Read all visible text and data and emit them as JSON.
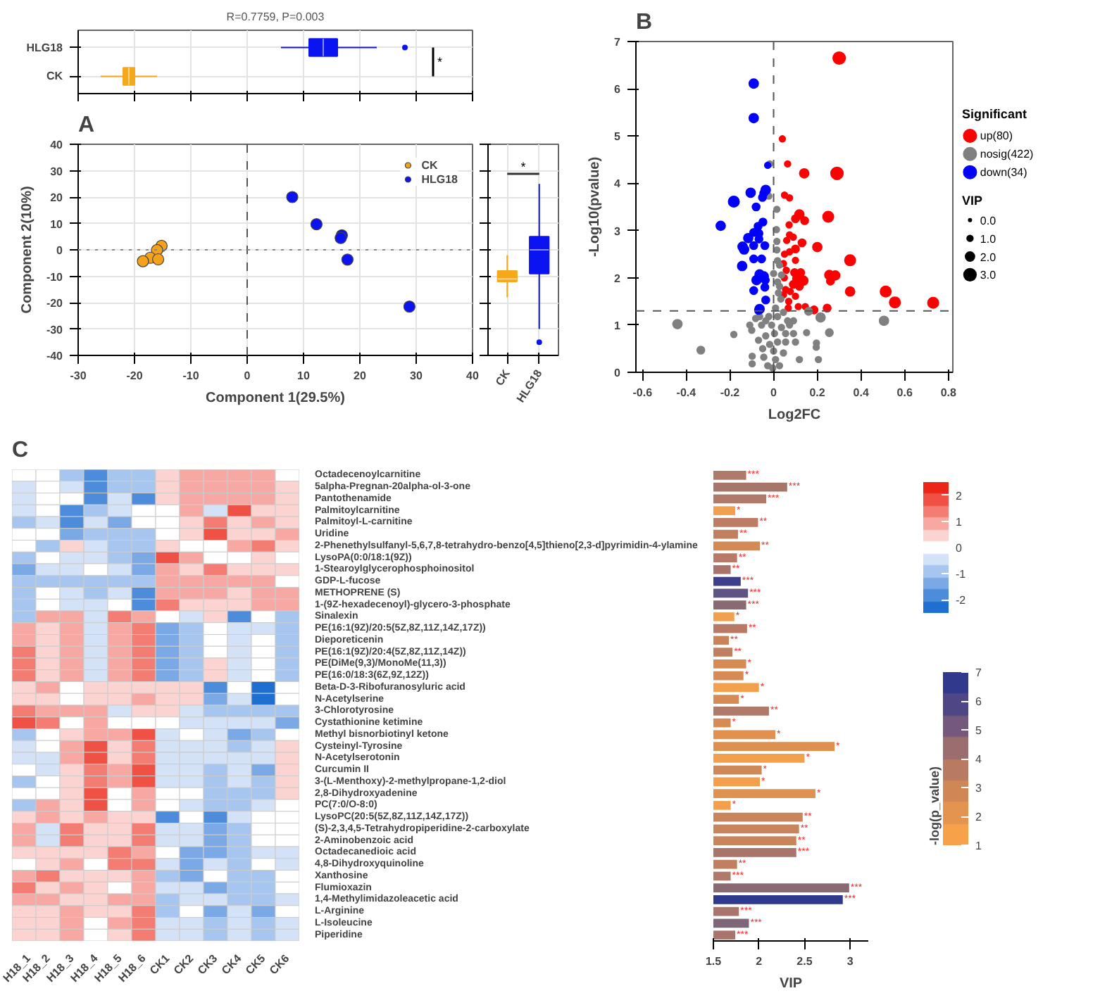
{
  "chart_data": [
    {
      "type": "box",
      "orientation": "horizontal",
      "title": "R=0.7759, P=0.003",
      "categories": [
        "HLG18",
        "CK"
      ],
      "colors": [
        "#0a14f0",
        "#f5a91a"
      ],
      "boxes": [
        {
          "low": 6,
          "q1": 11,
          "median": 13.5,
          "q3": 16,
          "high": 23,
          "outliers": [
            28
          ]
        },
        {
          "low": -26,
          "q1": -22,
          "median": -21,
          "q3": -20,
          "high": -16
        }
      ],
      "xlim": [
        -30,
        40
      ],
      "xticks": [
        -30,
        -20,
        -10,
        0,
        10,
        20,
        30,
        40
      ],
      "tick_labels": "y",
      "grid": true,
      "annotations": [
        "*"
      ]
    },
    {
      "type": "scatter",
      "annotations": [
        "A"
      ],
      "xlabel": "Component 1(29.5%)",
      "ylabel": "Component 2(10%)",
      "marker": "circle",
      "legend": "top right",
      "grid": true,
      "series": [
        {
          "name": "CK",
          "color": "#f5a21a",
          "x": [
            -15.2,
            -16,
            -17.2,
            -18.5,
            -15.8
          ],
          "values": [
            1.5,
            -0.1,
            -3,
            -4.3,
            -3.6
          ]
        },
        {
          "name": "HLG18",
          "color": "#0a14f0",
          "x": [
            8,
            12.3,
            16.8,
            16.6,
            17.8,
            28.8
          ],
          "values": [
            20,
            9.7,
            5.5,
            4.5,
            -3.7,
            -21.5
          ]
        }
      ],
      "xlim": [
        -30,
        40
      ],
      "xticks": [
        -30,
        -20,
        -10,
        0,
        10,
        20,
        30,
        40
      ],
      "ylim": [
        -40,
        40
      ],
      "yticks": [
        -40,
        -30,
        -20,
        -10,
        0,
        10,
        20,
        30,
        40
      ],
      "ref_lines": [
        {
          "axis": "x",
          "value": 0,
          "line_style": "dashed",
          "color": "#555555"
        },
        {
          "axis": "y",
          "value": 0,
          "line_style": "dotted",
          "color": "#888888"
        }
      ]
    },
    {
      "type": "box",
      "categories": [
        "CK",
        "HLG18"
      ],
      "colors": [
        "#f5a91a",
        "#0a14f0"
      ],
      "boxes": [
        {
          "low": -18,
          "q1": -12,
          "median": -11,
          "q3": -8,
          "high": -2
        },
        {
          "low": -30,
          "q1": -9,
          "median": 0,
          "q3": 5,
          "high": 25,
          "outliers": [
            -35
          ]
        }
      ],
      "ylim": [
        -40,
        40
      ],
      "yticks": [
        -40,
        -30,
        -20,
        -10,
        0,
        10,
        20,
        30,
        40
      ],
      "tick_labels": "x",
      "grid": true,
      "annotations": [
        "*"
      ]
    },
    {
      "type": "bubble",
      "xlabel": "Log2FC",
      "ylabel": "-Log10(pvalue)",
      "legend": "right",
      "legend_title": "Significant",
      "size_legend": [
        {
          "value": 0,
          "label": "0.0"
        },
        {
          "value": 1,
          "label": "1.0"
        },
        {
          "value": 2,
          "label": "2.0"
        },
        {
          "value": 3,
          "label": "3.0"
        }
      ],
      "xlim": [
        -0.63,
        0.82
      ],
      "xticks": [
        -0.6,
        -0.4,
        -0.2,
        0,
        0.2,
        0.4,
        0.6,
        0.8
      ],
      "ylim": [
        0,
        7
      ],
      "yticks": [
        0,
        1,
        2,
        3,
        4,
        5,
        6,
        7
      ],
      "annotations": [
        "B",
        "VIP"
      ],
      "ref_lines": [
        {
          "axis": "x",
          "value": 0,
          "line_style": "dashed",
          "color": "#555555"
        },
        {
          "axis": "y",
          "value": 1.3,
          "line_style": "dashed",
          "color": "#555555"
        }
      ],
      "series": [
        {
          "name": "up(80)",
          "color": "#ff0000",
          "x": [
            0.3,
            0.04,
            0.064,
            0.14,
            0.29,
            0.05,
            0.073,
            0.118,
            0.1,
            0.142,
            0.25,
            0.071,
            0.073,
            0.09,
            0.06,
            0.13,
            0.2,
            0.1,
            0.073,
            0.05,
            0.1,
            0.35,
            0.045,
            0.058,
            0.096,
            0.124,
            0.255,
            0.282,
            0.26,
            0.049,
            0.105,
            0.136,
            0.09,
            0.118,
            0.055,
            0.076,
            0.35,
            0.513,
            0.045,
            0.1,
            0.069,
            0.555,
            0.73,
            0.067,
            0.113,
            0.145,
            0.245,
            0.185
          ],
          "values": [
            6.65,
            4.94,
            4.41,
            4.21,
            4.21,
            3.75,
            3.69,
            3.34,
            3.25,
            3.21,
            3.29,
            3.12,
            2.91,
            2.86,
            2.79,
            2.74,
            2.65,
            2.61,
            2.55,
            2.5,
            2.37,
            2.37,
            2.3,
            2.16,
            2.11,
            2.11,
            2.06,
            2.05,
            1.93,
            2.0,
            1.98,
            1.94,
            1.86,
            1.82,
            1.75,
            1.71,
            1.71,
            1.71,
            1.64,
            1.61,
            1.5,
            1.48,
            1.47,
            1.36,
            1.39,
            1.39,
            1.36,
            1.32
          ],
          "sizes": [
            3,
            1,
            1,
            2,
            3,
            1,
            1,
            2,
            1.5,
            1.5,
            2.5,
            1,
            1,
            1,
            1,
            1.5,
            2,
            1.5,
            1,
            1,
            1,
            2.5,
            1,
            1,
            1.5,
            1.5,
            2,
            2,
            1.5,
            1,
            1.5,
            2,
            1.5,
            1.5,
            1,
            1,
            2,
            2.5,
            1,
            1,
            1,
            2.5,
            2.5,
            1,
            1,
            1,
            1.5,
            1.5
          ]
        },
        {
          "name": "nosig(422)",
          "color": "#808080",
          "x": [
            -0.44,
            -0.333,
            -0.182,
            -0.1,
            -0.098,
            -0.098,
            -0.069,
            -0.05,
            -0.036,
            -0.022,
            -0.018,
            0.015,
            0.013,
            0.015,
            0.015,
            0.018,
            0.027,
            0.036,
            0.018,
            0.022,
            0.033,
            0.009,
            -0.022,
            -0.009,
            0.004,
            0.018,
            0,
            0.009,
            -0.004,
            0.027,
            -0.027,
            0.045,
            -0.045,
            0.055,
            0.073,
            0.091,
            0.1,
            0.118,
            0.151,
            0.16,
            0.195,
            0.196,
            0.205,
            0.215,
            0.255,
            0.505,
            -0.055,
            -0.064,
            -0.036,
            -0.018,
            0.036,
            0.064,
            0.018,
            0.045,
            0.091,
            -0.082,
            -0.109,
            0.055,
            0.027,
            0
          ],
          "values": [
            1.02,
            0.47,
            0.8,
            0.89,
            0.34,
            0.18,
            0.68,
            0.5,
            1.09,
            3.73,
            4.41,
            3.45,
            3.02,
            2.77,
            2.59,
            2.36,
            2.27,
            2.06,
            1.91,
            1.68,
            1.55,
            1.36,
            1.18,
            1.0,
            0.82,
            0.64,
            0.45,
            0.27,
            0.09,
            0.14,
            0.14,
            0.41,
            0.32,
            0.82,
            1.0,
            1.09,
            0.64,
            0.27,
            0.84,
            1.29,
            0.53,
            0.62,
            0.27,
            1.16,
            0.84,
            1.09,
            1.0,
            1.18,
            0.77,
            0.59,
            0.95,
            1.09,
            1.18,
            1.27,
            0.82,
            1.14,
            1.0,
            0.64,
            1.82,
            2.09
          ],
          "sizes": [
            2,
            1.5,
            1,
            1,
            1,
            1,
            1,
            1,
            1,
            1,
            1,
            1,
            1,
            1,
            1,
            1,
            1,
            1,
            1,
            1,
            1,
            1,
            1,
            1,
            1,
            1,
            1,
            1,
            1,
            1,
            1,
            1,
            1,
            1,
            1,
            1,
            1,
            1,
            1,
            1.5,
            1,
            1,
            1,
            2,
            1.5,
            2,
            1,
            1,
            1,
            1,
            1,
            1,
            1,
            1,
            1,
            1,
            1,
            1,
            1,
            1
          ]
        },
        {
          "name": "down(34)",
          "color": "#0000ff",
          "x": [
            -0.091,
            -0.091,
            -0.027,
            -0.182,
            -0.105,
            -0.036,
            -0.045,
            -0.051,
            -0.08,
            -0.242,
            -0.049,
            -0.071,
            -0.091,
            -0.067,
            -0.116,
            -0.067,
            -0.142,
            -0.135,
            -0.091,
            -0.04,
            -0.091,
            -0.055,
            -0.144,
            -0.064,
            -0.045,
            -0.078,
            -0.038,
            -0.091,
            -0.04,
            -0.036,
            -0.064,
            -0.069
          ],
          "values": [
            6.11,
            5.38,
            4.38,
            3.61,
            3.8,
            3.86,
            3.79,
            3.7,
            3.5,
            3.1,
            3.18,
            3.09,
            2.96,
            2.94,
            2.84,
            2.82,
            2.66,
            2.6,
            2.68,
            2.68,
            2.4,
            2.4,
            2.25,
            2.07,
            2.03,
            1.95,
            1.95,
            1.73,
            1.8,
            1.53,
            1.34,
            1.31
          ],
          "sizes": [
            2,
            2,
            1,
            2.5,
            2,
            2,
            1.5,
            1.5,
            1.5,
            2,
            1.5,
            1.5,
            1.5,
            1.5,
            2,
            1.5,
            2,
            2,
            1.5,
            1.5,
            1.5,
            1.5,
            2,
            2,
            2,
            2,
            1.5,
            1.5,
            1.5,
            1.5,
            2,
            1.5
          ]
        }
      ]
    },
    {
      "type": "heatmap",
      "annotations": [
        "C"
      ],
      "clim": [
        -2.5,
        2.5
      ],
      "cticks": [
        -2,
        -1,
        0,
        1,
        2
      ],
      "categories": [
        "H18_1",
        "H18_2",
        "H18_3",
        "H18_4",
        "H18_5",
        "H18_6",
        "CK1",
        "CK2",
        "CK3",
        "CK4",
        "CK5",
        "CK6"
      ],
      "y_categories": [
        "Octadecenoylcarnitine",
        "5alpha-Pregnan-20alpha-ol-3-one",
        "Pantothenamide",
        "Palmitoylcarnitine",
        "Palmitoyl-L-carnitine",
        "Uridine",
        "2-Phenethylsulfanyl-5,6,7,8-tetrahydro-benzo[4,5]thieno[2,3-d]pyrimidin-4-ylamine",
        "LysoPA(0:0/18:1(9Z))",
        "1-Stearoylglycerophosphoinositol",
        "GDP-L-fucose",
        "METHOPRENE (S)",
        "1-(9Z-hexadecenoyl)-glycero-3-phosphate",
        "Sinalexin",
        "PE(16:1(9Z)/20:5(5Z,8Z,11Z,14Z,17Z))",
        "Dieporeticenin",
        "PE(16:1(9Z)/20:4(5Z,8Z,11Z,14Z))",
        "PE(DiMe(9,3)/MonoMe(11,3))",
        "PE(16:0/18:3(6Z,9Z,12Z))",
        "Beta-D-3-Ribofuranosyluric acid",
        "N-Acetylserine",
        "3-Chlorotyrosine",
        "Cystathionine ketimine",
        "Methyl bisnorbiotinyl ketone",
        "Cysteinyl-Tyrosine",
        "N-Acetylserotonin",
        "Curcumin II",
        "3-(L-Menthoxy)-2-methylpropane-1,2-diol",
        "2,8-Dihydroxyadenine",
        "PC(7:0/O-8:0)",
        "LysoPC(20:5(5Z,8Z,11Z,14Z,17Z))",
        "(S)-2,3,4,5-Tetrahydropiperidine-2-carboxylate",
        "2-Aminobenzoic acid",
        "Octadecanedioic acid",
        "4,8-Dihydroxyquinoline",
        "Xanthosine",
        "Flumioxazin",
        "1,4-Methylimidazoleacetic acid",
        "L-Arginine",
        "L-Isoleucine",
        "Piperidine"
      ],
      "cells": [
        [
          -0.2,
          0,
          -1,
          -1.8,
          -0.8,
          -0.7,
          0.6,
          0.8,
          0.8,
          0.9,
          0.7,
          0.1
        ],
        [
          -0.4,
          -0.1,
          -0.3,
          -2.0,
          -0.7,
          -1.0,
          0.3,
          0.9,
          0.8,
          0.8,
          0.7,
          0.3
        ],
        [
          -0.3,
          -0.1,
          -0.1,
          -1.6,
          -0.6,
          -1.8,
          0.3,
          0.9,
          0.9,
          0.8,
          0.7,
          0.3
        ],
        [
          -0.4,
          0.2,
          -1.6,
          -1.0,
          -0.4,
          0,
          0.1,
          1.0,
          -0.4,
          1.6,
          0.6,
          0.3
        ],
        [
          -0.7,
          -0.3,
          -1.7,
          -0.3,
          -1.3,
          0.2,
          0,
          0.6,
          1.5,
          0.5,
          0.7,
          0.6
        ],
        [
          0,
          -0.1,
          -1.2,
          -1.0,
          -0.7,
          -0.7,
          -0.2,
          0.5,
          1.9,
          0.6,
          0.6,
          0.8
        ],
        [
          -0.2,
          -1.1,
          0.5,
          -0.4,
          -1.1,
          -1.1,
          0.5,
          0.1,
          0.2,
          1.0,
          1.3,
          0.6
        ],
        [
          -1.1,
          0.1,
          -0.3,
          -0.6,
          -0.8,
          -1.3,
          1.6,
          1.1,
          0.2,
          0.2,
          0.6,
          0.2
        ],
        [
          -1.5,
          -0.4,
          -0.6,
          0.2,
          -0.6,
          -1.2,
          0.9,
          0.5,
          1.4,
          0.4,
          0.5,
          0.6
        ],
        [
          -1.1,
          -0.9,
          -0.8,
          -0.9,
          -0.7,
          -0.7,
          0.9,
          0.9,
          1.0,
          0.8,
          0.8,
          0.2
        ],
        [
          -0.9,
          -0.2,
          -0.6,
          -0.8,
          -0.6,
          -1.6,
          0.9,
          0.7,
          0.7,
          0.6,
          0.9,
          0.8
        ],
        [
          -1.1,
          -0.2,
          -0.6,
          -0.6,
          -0.2,
          -1.6,
          1.3,
          0.3,
          0.6,
          0.6,
          0.9,
          0.8
        ],
        [
          -0.7,
          0.7,
          1.0,
          -0.3,
          1.3,
          1.1,
          -0.1,
          -0.3,
          0.3,
          -1.7,
          -0.2,
          -0.9
        ],
        [
          1.1,
          0.6,
          0.7,
          -0.6,
          1.0,
          1.4,
          -1.5,
          -0.7,
          0,
          -0.5,
          -0.3,
          -1.1
        ],
        [
          1.1,
          0.6,
          0.7,
          -0.6,
          1.0,
          1.4,
          -1.5,
          -0.7,
          0.1,
          -0.5,
          -0.2,
          -1.1
        ],
        [
          1.2,
          0.6,
          0.8,
          -0.6,
          1.0,
          1.3,
          -1.5,
          -0.7,
          0.2,
          -0.4,
          -0.1,
          -1.1
        ],
        [
          1.2,
          0.5,
          0.7,
          -0.6,
          0.9,
          1.3,
          -1.5,
          -0.7,
          0.3,
          -0.4,
          -0.1,
          -1.1
        ],
        [
          1.2,
          0.4,
          0.7,
          -0.6,
          0.8,
          1.3,
          -1.5,
          -0.7,
          0.4,
          -0.4,
          -0.1,
          -1.1
        ],
        [
          0.6,
          0.8,
          0.1,
          0.4,
          0.3,
          0.6,
          0.3,
          0.3,
          -1.6,
          0.1,
          -2.2,
          0.1
        ],
        [
          0.3,
          0.6,
          0.05,
          0.6,
          0.4,
          1.0,
          0.3,
          0.4,
          -1.2,
          -0.5,
          -2.2,
          0
        ],
        [
          1.3,
          0.9,
          0.9,
          1.1,
          -0.3,
          0.3,
          0.3,
          -0.3,
          -0.7,
          -0.9,
          -0.9,
          -0.8
        ],
        [
          1.9,
          1.4,
          0,
          0.7,
          0.05,
          -0.1,
          0.05,
          -0.3,
          -0.5,
          -0.6,
          -0.6,
          -1.2
        ],
        [
          -0.8,
          0.2,
          0.5,
          0.9,
          1.0,
          1.6,
          -0.4,
          -0.2,
          -0.4,
          -1.3,
          -0.7,
          0.1
        ],
        [
          -0.6,
          -0.2,
          0.8,
          1.6,
          0.6,
          1.4,
          -0.6,
          -0.6,
          -0.6,
          -0.7,
          -0.6,
          0.3
        ],
        [
          -0.4,
          -0.5,
          0.9,
          1.7,
          0.5,
          1.4,
          -0.6,
          -0.6,
          -0.6,
          -0.6,
          -0.6,
          0.4
        ],
        [
          0.2,
          -0.4,
          0.3,
          1.5,
          0.8,
          1.6,
          -0.6,
          -0.5,
          -0.7,
          -0.6,
          -1.2,
          0.4
        ],
        [
          -0.8,
          -0.1,
          0.5,
          1.4,
          1.1,
          1.6,
          -0.5,
          -0.6,
          -1.0,
          -0.6,
          -0.9,
          0.5
        ],
        [
          0,
          -0.05,
          0.4,
          1.9,
          0.1,
          0.7,
          0.1,
          0,
          -1.1,
          -0.8,
          -0.9,
          0.3
        ],
        [
          -1.0,
          0.8,
          0.4,
          2.0,
          0.2,
          0.7,
          -0.2,
          -0.3,
          -0.9,
          -0.8,
          -0.6,
          0.2
        ],
        [
          0.3,
          0.8,
          0.5,
          0.8,
          0.6,
          0.5,
          -1.8,
          0.2,
          -1.8,
          -0.4,
          -0.1,
          0
        ],
        [
          0.8,
          -0.6,
          1.4,
          0.4,
          0.4,
          1.2,
          -0.6,
          -0.4,
          -1.4,
          -0.7,
          -0.05,
          -0.2
        ],
        [
          0.8,
          -0.6,
          1.4,
          0.4,
          0.4,
          1.2,
          -0.6,
          -0.3,
          -1.4,
          -0.7,
          -0.05,
          -0.2
        ],
        [
          0.4,
          0.6,
          0.3,
          0.6,
          1.4,
          1.0,
          0,
          -1.3,
          -1.5,
          -0.8,
          -0.3,
          -0.4
        ],
        [
          0.2,
          0.4,
          0.7,
          0,
          1.4,
          1.3,
          -0.4,
          -1.3,
          -0.5,
          -1.1,
          0.05,
          -0.4
        ],
        [
          1.0,
          1.4,
          0.5,
          0.3,
          0.6,
          0.7,
          -0.8,
          -1.5,
          0,
          -1.0,
          -0.9,
          0.1
        ],
        [
          1.4,
          0.5,
          0.7,
          0.4,
          0.2,
          0.9,
          -0.5,
          -0.6,
          -1.2,
          -0.8,
          -0.9,
          -0.1
        ],
        [
          1.0,
          0.7,
          0.6,
          0.5,
          0.8,
          1.0,
          -1.1,
          -0.5,
          -0.5,
          -0.7,
          -1.1,
          -0.6
        ],
        [
          0.5,
          0.5,
          0.8,
          0.4,
          0.6,
          1.5,
          -0.8,
          -0.1,
          -1.2,
          -0.5,
          -1.3,
          0.1
        ],
        [
          0.4,
          0.5,
          1.1,
          0.1,
          0.7,
          1.3,
          -0.6,
          -0.6,
          -1.1,
          -0.4,
          -0.9,
          -0.4
        ],
        [
          0.4,
          0.4,
          1.1,
          0.1,
          0.6,
          1.3,
          -0.6,
          -0.6,
          -1.0,
          -0.5,
          -0.9,
          -0.3
        ]
      ]
    },
    {
      "type": "bar",
      "orientation": "horizontal",
      "xlabel": "VIP",
      "clabel": "-log(p_value)",
      "clim": [
        1,
        7
      ],
      "cticks": [
        1,
        2,
        3,
        4,
        5,
        6,
        7
      ],
      "tick_labels": "x",
      "xlim": [
        1.5,
        3.2
      ],
      "xticks": [
        1.5,
        2,
        2.5,
        3
      ],
      "categories": [
        null,
        null,
        null,
        null,
        null,
        null,
        null,
        null,
        null,
        null,
        null,
        null,
        null,
        null,
        null,
        null,
        null,
        null,
        null,
        null,
        null,
        null,
        null,
        null,
        null,
        null,
        null,
        null,
        null,
        null,
        null,
        null,
        null,
        null,
        null,
        null,
        null,
        null,
        null,
        null
      ],
      "values": [
        1.86,
        2.31,
        2.08,
        1.74,
        1.99,
        1.77,
        2.01,
        1.76,
        1.69,
        1.8,
        1.88,
        1.86,
        1.73,
        1.87,
        1.67,
        1.71,
        1.86,
        1.83,
        2.0,
        1.78,
        2.11,
        1.69,
        2.18,
        2.83,
        2.5,
        2.03,
        2.01,
        2.62,
        1.69,
        2.48,
        2.44,
        2.41,
        2.41,
        1.76,
        1.69,
        2.99,
        2.92,
        1.78,
        1.89,
        1.74
      ],
      "value_labels": [
        "***",
        "***",
        "***",
        "*",
        "**",
        "**",
        "**",
        "**",
        "**",
        "***",
        "***",
        "***",
        "*",
        "**",
        "**",
        "**",
        "*",
        "*",
        "*",
        "*",
        "**",
        "*",
        "*",
        "*",
        "*",
        "*",
        "*",
        "*",
        "*",
        "**",
        "**",
        "**",
        "***",
        "**",
        "***",
        "***",
        "***",
        "***",
        "***",
        "***"
      ],
      "colors": [
        "#b07a6a",
        "#a7766b",
        "#b07a6a",
        "#f0a04e",
        "#bd7c63",
        "#c0805f",
        "#d48a55",
        "#b87a66",
        "#a8746b",
        "#3c3f8a",
        "#5e5382",
        "#8a6a72",
        "#f0a04e",
        "#b87a66",
        "#c88458",
        "#c0805f",
        "#d68b55",
        "#d68b55",
        "#f2a04c",
        "#d68b55",
        "#b07a6a",
        "#d68b55",
        "#e09150",
        "#dd9050",
        "#f2a04c",
        "#cf8858",
        "#f2a04c",
        "#df9150",
        "#f2a04c",
        "#c8845b",
        "#c8845b",
        "#c8845b",
        "#a8746b",
        "#c0805f",
        "#b07a6a",
        "#8a6a72",
        "#2f3a8f",
        "#a8746b",
        "#7f6578",
        "#a8746b"
      ]
    }
  ]
}
